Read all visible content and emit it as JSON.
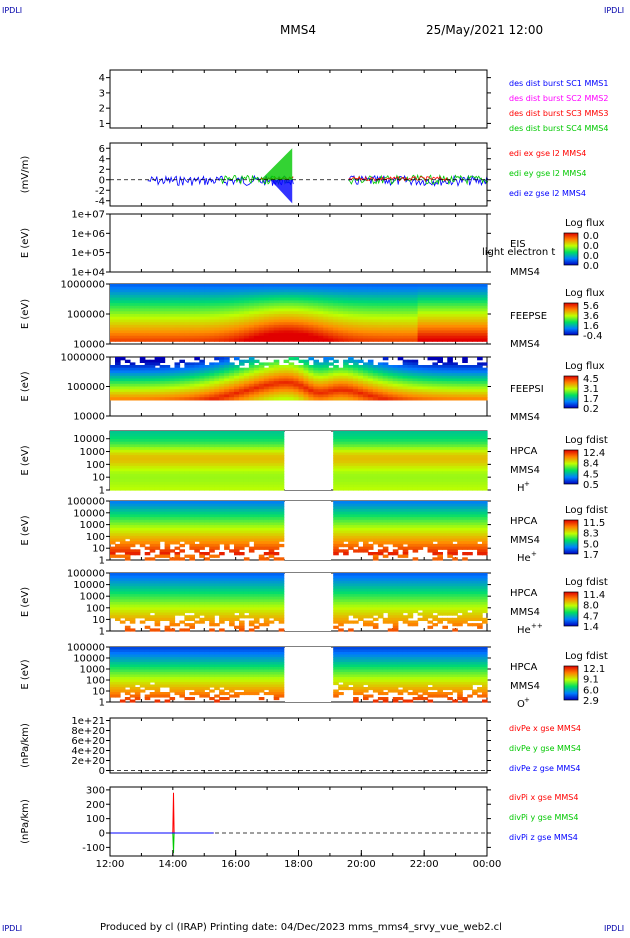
{
  "header": {
    "corner_left": "IPDLI",
    "corner_right": "IPDLI",
    "spacecraft": "MMS4",
    "datetime": "25/May/2021 12:00"
  },
  "footer": {
    "text": "Produced by cl (IRAP)   Printing date: 04/Dec/2023   mms_mms4_srvy_vue_web2.cl",
    "corner_left": "IPDLI",
    "corner_right": "IPDLI"
  },
  "colors": {
    "red": "#ff0000",
    "green": "#00c800",
    "blue": "#0000ff",
    "magenta": "#ff00ff"
  },
  "chart_data": {
    "type": "line",
    "x_ticks": [
      "12:00",
      "14:00",
      "16:00",
      "18:00",
      "20:00",
      "22:00",
      "00:00"
    ],
    "panels": [
      {
        "id": "des",
        "type": "line",
        "ylabel": "",
        "y_ticks": [
          "1",
          "2",
          "3",
          "4"
        ],
        "ylim": [
          0.7,
          4.5
        ],
        "legend": [
          {
            "label": "des dist burst SC1 MMS1",
            "color": "#0000ff"
          },
          {
            "label": "des dist burst SC2 MMS2",
            "color": "#ff00ff"
          },
          {
            "label": "des dist burst SC3 MMS3",
            "color": "#ff0000"
          },
          {
            "label": "des dist burst SC4 MMS4",
            "color": "#00c800"
          }
        ]
      },
      {
        "id": "edi",
        "type": "line",
        "ylabel": "(mV/m)",
        "y_ticks": [
          "6",
          "4",
          "2",
          "0",
          "-2",
          "-4"
        ],
        "ylim": [
          -5,
          7
        ],
        "legend": [
          {
            "label": "edi ex gse l2 MMS4",
            "color": "#ff0000"
          },
          {
            "label": "edi ey gse l2 MMS4",
            "color": "#00c800"
          },
          {
            "label": "edi ez gse l2 MMS4",
            "color": "#0000ff"
          }
        ]
      },
      {
        "id": "eis",
        "type": "heatmap",
        "ylabel": "E (eV)",
        "y_ticks": [
          "1e+07",
          "1e+06",
          "1e+05",
          "1e+04"
        ],
        "ylim": [
          10000,
          10000000
        ],
        "instrument": [
          "EIS",
          "MMS4"
        ],
        "overlay_text": "light electron t",
        "colorbar": {
          "title": "Log flux",
          "values": [
            "0.0",
            "0.0",
            "0.0",
            "0.0"
          ]
        }
      },
      {
        "id": "feepse",
        "type": "heatmap",
        "ylabel": "E (eV)",
        "y_ticks": [
          "1000000",
          "100000",
          "10000"
        ],
        "ylim": [
          10000,
          1000000
        ],
        "instrument": [
          "FEEPSE",
          "MMS4"
        ],
        "colorbar": {
          "title": "Log flux",
          "values": [
            "5.6",
            "3.6",
            "1.6",
            "-0.4"
          ]
        }
      },
      {
        "id": "feepsi",
        "type": "heatmap",
        "ylabel": "E (eV)",
        "y_ticks": [
          "1000000",
          "100000",
          "10000"
        ],
        "ylim": [
          10000,
          1000000
        ],
        "instrument": [
          "FEEPSI",
          "MMS4"
        ],
        "colorbar": {
          "title": "Log flux",
          "values": [
            "4.5",
            "3.1",
            "1.7",
            "0.2"
          ]
        }
      },
      {
        "id": "hpca_h",
        "type": "heatmap",
        "ylabel": "E (eV)",
        "y_ticks": [
          "10000",
          "1000",
          "100",
          "10",
          "1"
        ],
        "ylim": [
          1,
          40000
        ],
        "instrument": [
          "HPCA",
          "MMS4"
        ],
        "species": "H",
        "species_sup": "+",
        "colorbar": {
          "title": "Log fdist",
          "values": [
            "12.4",
            "8.4",
            "4.5",
            "0.5"
          ]
        }
      },
      {
        "id": "hpca_he1",
        "type": "heatmap",
        "ylabel": "E (eV)",
        "y_ticks": [
          "100000",
          "10000",
          "1000",
          "100",
          "10",
          "1"
        ],
        "ylim": [
          1,
          100000
        ],
        "instrument": [
          "HPCA",
          "MMS4"
        ],
        "species": "He",
        "species_sup": "+",
        "colorbar": {
          "title": "Log fdist",
          "values": [
            "11.5",
            "8.3",
            "5.0",
            "1.7"
          ]
        }
      },
      {
        "id": "hpca_he2",
        "type": "heatmap",
        "ylabel": "E (eV)",
        "y_ticks": [
          "100000",
          "10000",
          "1000",
          "100",
          "10",
          "1"
        ],
        "ylim": [
          1,
          100000
        ],
        "instrument": [
          "HPCA",
          "MMS4"
        ],
        "species": "He",
        "species_sup": "++",
        "colorbar": {
          "title": "Log fdist",
          "values": [
            "11.4",
            "8.0",
            "4.7",
            "1.4"
          ]
        }
      },
      {
        "id": "hpca_o",
        "type": "heatmap",
        "ylabel": "E (eV)",
        "y_ticks": [
          "100000",
          "10000",
          "1000",
          "100",
          "10",
          "1"
        ],
        "ylim": [
          1,
          100000
        ],
        "instrument": [
          "HPCA",
          "MMS4"
        ],
        "species": "O",
        "species_sup": "+",
        "colorbar": {
          "title": "Log fdist",
          "values": [
            "12.1",
            "9.1",
            "6.0",
            "2.9"
          ]
        }
      },
      {
        "id": "divpe",
        "type": "line",
        "ylabel": "(nPa/km)",
        "y_ticks": [
          "1e+21",
          "8e+20",
          "6e+20",
          "4e+20",
          "2e+20",
          "0"
        ],
        "ylim": [
          -5e+19,
          1.05e+21
        ],
        "legend": [
          {
            "label": "divPe x gse MMS4",
            "color": "#ff0000"
          },
          {
            "label": "divPe y gse MMS4",
            "color": "#00c800"
          },
          {
            "label": "divPe z gse MMS4",
            "color": "#0000ff"
          }
        ]
      },
      {
        "id": "divpi",
        "type": "line",
        "ylabel": "(nPa/km)",
        "y_ticks": [
          "300",
          "200",
          "100",
          "0",
          "-100"
        ],
        "ylim": [
          -160,
          320
        ],
        "legend": [
          {
            "label": "divPi x gse MMS4",
            "color": "#ff0000"
          },
          {
            "label": "divPi y gse MMS4",
            "color": "#00c800"
          },
          {
            "label": "divPi z gse MMS4",
            "color": "#0000ff"
          }
        ],
        "series": [
          {
            "name": "divPi x gse MMS4",
            "x": [
              12.0,
              14.0,
              14.02,
              14.04,
              15.3
            ],
            "y": [
              0,
              0,
              280,
              0,
              0
            ],
            "color": "#ff0000"
          },
          {
            "name": "divPi y gse MMS4",
            "x": [
              14.0,
              14.02,
              14.04
            ],
            "y": [
              0,
              -140,
              0
            ],
            "color": "#00c800"
          },
          {
            "name": "divPi z gse MMS4",
            "x": [
              12.0,
              15.3
            ],
            "y": [
              0,
              0
            ],
            "color": "#0000ff"
          }
        ]
      }
    ]
  }
}
